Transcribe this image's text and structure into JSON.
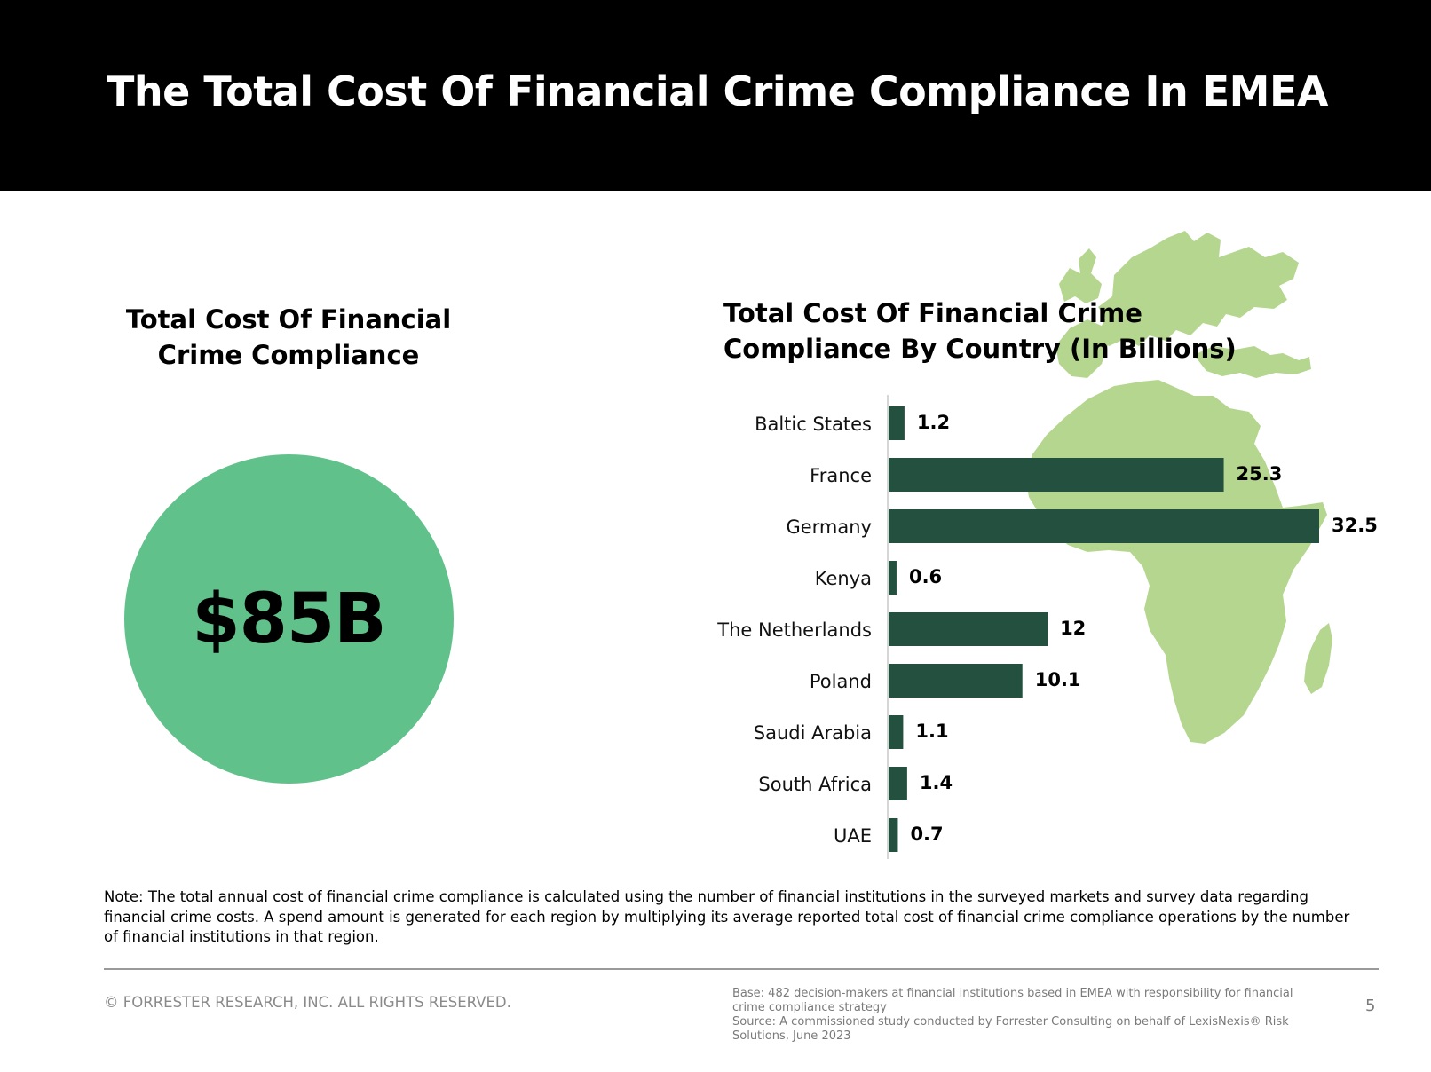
{
  "header": {
    "title": "The Total Cost Of Financial Crime Compliance In EMEA"
  },
  "left_panel": {
    "title_line1": "Total Cost Of Financial",
    "title_line2": "Crime Compliance",
    "total_value": "$85B",
    "circle_color": "#61c18b"
  },
  "chart_title": {
    "line1": "Total Cost Of Financial Crime",
    "line2": "Compliance By Country (In Billions)"
  },
  "chart_data": {
    "type": "bar",
    "orientation": "horizontal",
    "title": "Total Cost Of Financial Crime Compliance By Country (In Billions)",
    "categories": [
      "Baltic States",
      "France",
      "Germany",
      "Kenya",
      "The Netherlands",
      "Poland",
      "Saudi Arabia",
      "South Africa",
      "UAE"
    ],
    "values": [
      1.2,
      25.3,
      32.5,
      0.6,
      12,
      10.1,
      1.1,
      1.4,
      0.7
    ],
    "value_labels": [
      "1.2",
      "25.3",
      "32.5",
      "0.6",
      "12",
      "10.1",
      "1.1",
      "1.4",
      "0.7"
    ],
    "xlim": [
      0,
      32.5
    ],
    "grid": false,
    "bar_color": "#24513f",
    "background_map_color": "#b5d68e"
  },
  "note": "Note: The total annual cost of financial crime compliance is calculated using the number of financial institutions in the surveyed markets and survey data regarding financial crime costs. A spend amount is generated for each region by multiplying its average reported total cost of financial crime compliance operations by the number of financial institutions in that region.",
  "footer": {
    "copyright": "© FORRESTER RESEARCH, INC. ALL RIGHTS RESERVED.",
    "base": "Base: 482 decision-makers at financial institutions based in EMEA with responsibility for financial crime compliance strategy",
    "source": "Source: A commissioned study conducted by Forrester Consulting on behalf of LexisNexis® Risk Solutions, June 2023",
    "page_number": "5"
  }
}
